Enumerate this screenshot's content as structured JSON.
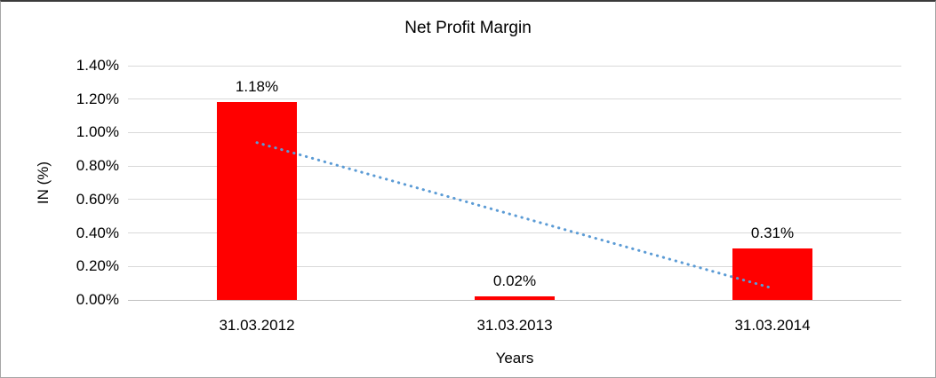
{
  "chart_data": {
    "type": "bar",
    "title": "Net Profit Margin",
    "xlabel": "Years",
    "ylabel": "IN (%)",
    "categories": [
      "31.03.2012",
      "31.03.2013",
      "31.03.2014"
    ],
    "values": [
      1.18,
      0.02,
      0.31
    ],
    "data_labels": [
      "1.18%",
      "0.02%",
      "0.31%"
    ],
    "ylim": [
      0,
      1.4
    ],
    "ytick_step": 0.2,
    "ytick_labels": [
      "0.00%",
      "0.20%",
      "0.40%",
      "0.60%",
      "0.80%",
      "1.00%",
      "1.20%",
      "1.40%"
    ],
    "grid": "horizontal",
    "legend": "none",
    "bar_color": "#ff0000",
    "gridline_color": "#d9d9d9",
    "text_color": "#000000",
    "trendline": {
      "type": "linear",
      "style": "dotted",
      "color": "#5b9bd5",
      "start_value": 0.94,
      "end_value": 0.07
    }
  }
}
